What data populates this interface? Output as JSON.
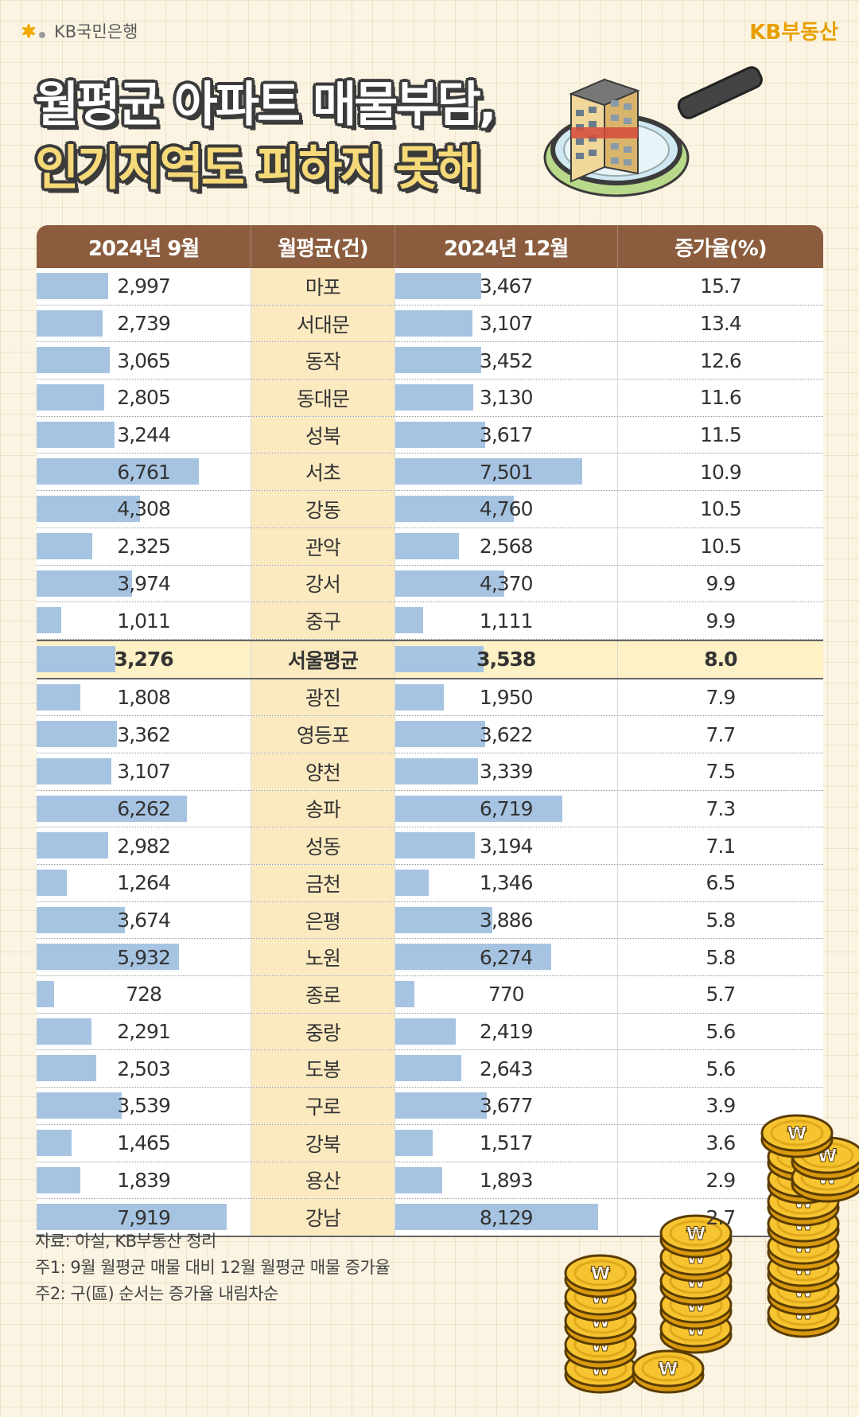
{
  "brand": {
    "bank": "KB국민은행",
    "realty": "KB부동산",
    "accent_color": "#e8a000"
  },
  "title": {
    "line1": "월평균 아파트 매물부담,",
    "line2": "인기지역도 피하지 못해"
  },
  "header": {
    "col1": "2024년 9월",
    "col2": "월평균(건)",
    "col3": "2024년 12월",
    "col4": "증가율(%)"
  },
  "notes": {
    "source": "자료: 아실, KB부동산 정리",
    "note1": "주1: 9월 월평균 매물 대비 12월 월평균 매물 증가율",
    "note2": "주2: 구(區) 순서는 증가율 내림차순"
  },
  "chart_data": {
    "type": "table",
    "columns": [
      "2024년 9월",
      "월평균(건)",
      "2024년 12월",
      "증가율(%)"
    ],
    "bar_max": 8129,
    "bar_color": "#a6c4e2",
    "rows": [
      {
        "district": "마포",
        "sep": "2,997",
        "dec": "3,467",
        "rate": "15.7",
        "sep_v": 2997,
        "dec_v": 3467
      },
      {
        "district": "서대문",
        "sep": "2,739",
        "dec": "3,107",
        "rate": "13.4",
        "sep_v": 2739,
        "dec_v": 3107
      },
      {
        "district": "동작",
        "sep": "3,065",
        "dec": "3,452",
        "rate": "12.6",
        "sep_v": 3065,
        "dec_v": 3452
      },
      {
        "district": "동대문",
        "sep": "2,805",
        "dec": "3,130",
        "rate": "11.6",
        "sep_v": 2805,
        "dec_v": 3130
      },
      {
        "district": "성북",
        "sep": "3,244",
        "dec": "3,617",
        "rate": "11.5",
        "sep_v": 3244,
        "dec_v": 3617
      },
      {
        "district": "서초",
        "sep": "6,761",
        "dec": "7,501",
        "rate": "10.9",
        "sep_v": 6761,
        "dec_v": 7501
      },
      {
        "district": "강동",
        "sep": "4,308",
        "dec": "4,760",
        "rate": "10.5",
        "sep_v": 4308,
        "dec_v": 4760
      },
      {
        "district": "관악",
        "sep": "2,325",
        "dec": "2,568",
        "rate": "10.5",
        "sep_v": 2325,
        "dec_v": 2568
      },
      {
        "district": "강서",
        "sep": "3,974",
        "dec": "4,370",
        "rate": "9.9",
        "sep_v": 3974,
        "dec_v": 4370
      },
      {
        "district": "중구",
        "sep": "1,011",
        "dec": "1,111",
        "rate": "9.9",
        "sep_v": 1011,
        "dec_v": 1111
      },
      {
        "district": "서울평균",
        "sep": "3,276",
        "dec": "3,538",
        "rate": "8.0",
        "sep_v": 3276,
        "dec_v": 3538,
        "highlight": true
      },
      {
        "district": "광진",
        "sep": "1,808",
        "dec": "1,950",
        "rate": "7.9",
        "sep_v": 1808,
        "dec_v": 1950
      },
      {
        "district": "영등포",
        "sep": "3,362",
        "dec": "3,622",
        "rate": "7.7",
        "sep_v": 3362,
        "dec_v": 3622
      },
      {
        "district": "양천",
        "sep": "3,107",
        "dec": "3,339",
        "rate": "7.5",
        "sep_v": 3107,
        "dec_v": 3339
      },
      {
        "district": "송파",
        "sep": "6,262",
        "dec": "6,719",
        "rate": "7.3",
        "sep_v": 6262,
        "dec_v": 6719
      },
      {
        "district": "성동",
        "sep": "2,982",
        "dec": "3,194",
        "rate": "7.1",
        "sep_v": 2982,
        "dec_v": 3194
      },
      {
        "district": "금천",
        "sep": "1,264",
        "dec": "1,346",
        "rate": "6.5",
        "sep_v": 1264,
        "dec_v": 1346
      },
      {
        "district": "은평",
        "sep": "3,674",
        "dec": "3,886",
        "rate": "5.8",
        "sep_v": 3674,
        "dec_v": 3886
      },
      {
        "district": "노원",
        "sep": "5,932",
        "dec": "6,274",
        "rate": "5.8",
        "sep_v": 5932,
        "dec_v": 6274
      },
      {
        "district": "종로",
        "sep": "728",
        "dec": "770",
        "rate": "5.7",
        "sep_v": 728,
        "dec_v": 770
      },
      {
        "district": "중랑",
        "sep": "2,291",
        "dec": "2,419",
        "rate": "5.6",
        "sep_v": 2291,
        "dec_v": 2419
      },
      {
        "district": "도봉",
        "sep": "2,503",
        "dec": "2,643",
        "rate": "5.6",
        "sep_v": 2503,
        "dec_v": 2643
      },
      {
        "district": "구로",
        "sep": "3,539",
        "dec": "3,677",
        "rate": "3.9",
        "sep_v": 3539,
        "dec_v": 3677
      },
      {
        "district": "강북",
        "sep": "1,465",
        "dec": "1,517",
        "rate": "3.6",
        "sep_v": 1465,
        "dec_v": 1517
      },
      {
        "district": "용산",
        "sep": "1,839",
        "dec": "1,893",
        "rate": "2.9",
        "sep_v": 1839,
        "dec_v": 1893
      },
      {
        "district": "강남",
        "sep": "7,919",
        "dec": "8,129",
        "rate": "2.7",
        "sep_v": 7919,
        "dec_v": 8129
      }
    ]
  },
  "icons": {
    "logo": "kb-star-icon",
    "illustration": "magnifier-apartment-icon",
    "coins": "won-coin-stack-icon"
  }
}
